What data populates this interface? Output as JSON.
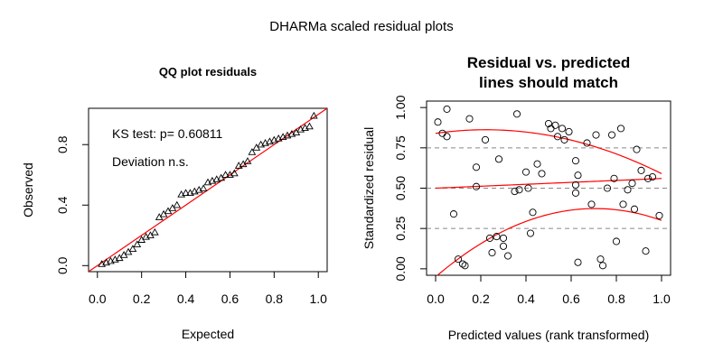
{
  "figure_title": "DHARMa scaled residual plots",
  "chart_data": [
    {
      "type": "scatter",
      "title": "QQ plot residuals",
      "xlabel": "Expected",
      "ylabel": "Observed",
      "xlim": [
        0,
        1
      ],
      "ylim": [
        0,
        1
      ],
      "xticks": [
        "0.0",
        "0.2",
        "0.4",
        "0.6",
        "0.8",
        "1.0"
      ],
      "yticks": [
        "0.0",
        "0.4",
        "0.8"
      ],
      "annotations": [
        "KS test: p= 0.60811",
        "Deviation  n.s."
      ],
      "reference_line": [
        [
          0,
          0
        ],
        [
          1,
          1
        ]
      ],
      "reference_color": "#ff0000",
      "marker": "triangle",
      "points": [
        [
          0.02,
          0.01
        ],
        [
          0.04,
          0.02
        ],
        [
          0.06,
          0.03
        ],
        [
          0.08,
          0.04
        ],
        [
          0.1,
          0.05
        ],
        [
          0.12,
          0.07
        ],
        [
          0.14,
          0.09
        ],
        [
          0.16,
          0.11
        ],
        [
          0.18,
          0.14
        ],
        [
          0.2,
          0.17
        ],
        [
          0.22,
          0.19
        ],
        [
          0.24,
          0.2
        ],
        [
          0.26,
          0.22
        ],
        [
          0.28,
          0.32
        ],
        [
          0.3,
          0.34
        ],
        [
          0.32,
          0.36
        ],
        [
          0.34,
          0.38
        ],
        [
          0.36,
          0.4
        ],
        [
          0.38,
          0.47
        ],
        [
          0.4,
          0.48
        ],
        [
          0.42,
          0.48
        ],
        [
          0.44,
          0.49
        ],
        [
          0.46,
          0.5
        ],
        [
          0.48,
          0.51
        ],
        [
          0.5,
          0.55
        ],
        [
          0.52,
          0.56
        ],
        [
          0.54,
          0.57
        ],
        [
          0.56,
          0.58
        ],
        [
          0.58,
          0.6
        ],
        [
          0.6,
          0.6
        ],
        [
          0.62,
          0.61
        ],
        [
          0.64,
          0.66
        ],
        [
          0.66,
          0.67
        ],
        [
          0.68,
          0.69
        ],
        [
          0.7,
          0.75
        ],
        [
          0.72,
          0.78
        ],
        [
          0.74,
          0.8
        ],
        [
          0.76,
          0.81
        ],
        [
          0.78,
          0.82
        ],
        [
          0.8,
          0.83
        ],
        [
          0.82,
          0.84
        ],
        [
          0.84,
          0.85
        ],
        [
          0.86,
          0.86
        ],
        [
          0.88,
          0.87
        ],
        [
          0.9,
          0.88
        ],
        [
          0.92,
          0.9
        ],
        [
          0.94,
          0.91
        ],
        [
          0.96,
          0.92
        ],
        [
          0.98,
          0.99
        ]
      ]
    },
    {
      "type": "scatter",
      "title_lines": [
        "Residual vs. predicted",
        "lines should match"
      ],
      "xlabel": "Predicted values (rank transformed)",
      "ylabel": "Standardized residual",
      "xlim": [
        0,
        1
      ],
      "ylim": [
        0,
        1
      ],
      "xticks": [
        "0.0",
        "0.2",
        "0.4",
        "0.6",
        "0.8",
        "1.0"
      ],
      "yticks": [
        "0.00",
        "0.25",
        "0.50",
        "0.75",
        "1.00"
      ],
      "hlines": [
        0.25,
        0.5,
        0.75
      ],
      "hline_color": "#888888",
      "curve_color": "#ff0000",
      "marker": "circle",
      "quantile_curves": [
        {
          "quantile": 0.25,
          "a": -0.05,
          "b": 1.2,
          "c": -0.85
        },
        {
          "quantile": 0.5,
          "a": 0.5,
          "b": 0.06,
          "c": 0.0
        },
        {
          "quantile": 0.75,
          "a": 0.84,
          "b": 0.2,
          "c": -0.45
        }
      ],
      "points": [
        [
          0.01,
          0.91
        ],
        [
          0.03,
          0.84
        ],
        [
          0.05,
          0.99
        ],
        [
          0.05,
          0.82
        ],
        [
          0.08,
          0.34
        ],
        [
          0.1,
          0.06
        ],
        [
          0.12,
          0.03
        ],
        [
          0.13,
          0.02
        ],
        [
          0.15,
          0.93
        ],
        [
          0.18,
          0.63
        ],
        [
          0.18,
          0.51
        ],
        [
          0.22,
          0.8
        ],
        [
          0.24,
          0.19
        ],
        [
          0.25,
          0.1
        ],
        [
          0.27,
          0.2
        ],
        [
          0.28,
          0.68
        ],
        [
          0.3,
          0.19
        ],
        [
          0.3,
          0.14
        ],
        [
          0.32,
          0.08
        ],
        [
          0.35,
          0.48
        ],
        [
          0.36,
          0.96
        ],
        [
          0.37,
          0.49
        ],
        [
          0.4,
          0.6
        ],
        [
          0.41,
          0.5
        ],
        [
          0.42,
          0.22
        ],
        [
          0.43,
          0.35
        ],
        [
          0.45,
          0.65
        ],
        [
          0.47,
          0.59
        ],
        [
          0.5,
          0.9
        ],
        [
          0.51,
          0.87
        ],
        [
          0.53,
          0.89
        ],
        [
          0.54,
          0.82
        ],
        [
          0.56,
          0.87
        ],
        [
          0.57,
          0.8
        ],
        [
          0.59,
          0.85
        ],
        [
          0.62,
          0.67
        ],
        [
          0.62,
          0.52
        ],
        [
          0.62,
          0.47
        ],
        [
          0.63,
          0.58
        ],
        [
          0.63,
          0.04
        ],
        [
          0.67,
          0.78
        ],
        [
          0.69,
          0.4
        ],
        [
          0.71,
          0.83
        ],
        [
          0.73,
          0.06
        ],
        [
          0.74,
          0.02
        ],
        [
          0.76,
          0.5
        ],
        [
          0.78,
          0.83
        ],
        [
          0.79,
          0.56
        ],
        [
          0.8,
          0.17
        ],
        [
          0.82,
          0.87
        ],
        [
          0.83,
          0.4
        ],
        [
          0.85,
          0.49
        ],
        [
          0.87,
          0.53
        ],
        [
          0.88,
          0.37
        ],
        [
          0.89,
          0.74
        ],
        [
          0.91,
          0.61
        ],
        [
          0.93,
          0.11
        ],
        [
          0.94,
          0.56
        ],
        [
          0.96,
          0.57
        ],
        [
          0.99,
          0.33
        ]
      ]
    }
  ]
}
